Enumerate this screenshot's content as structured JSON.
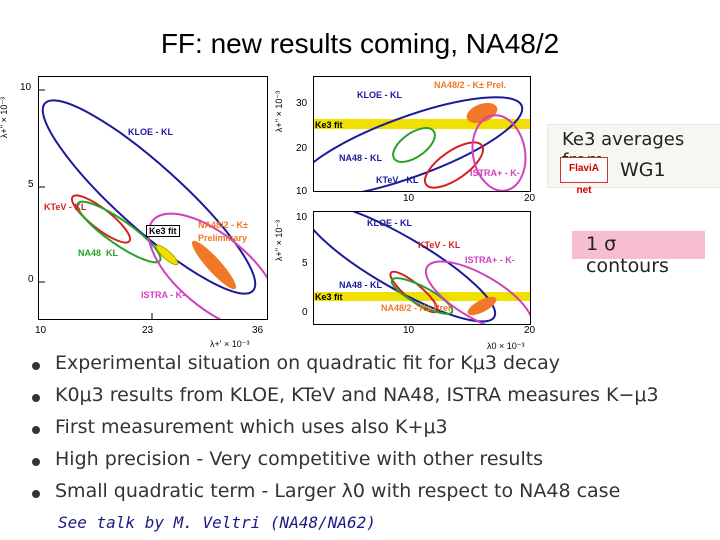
{
  "title": "FF: new results coming, NA48/2",
  "left_plot": {
    "y_ticks": [
      "10",
      "5",
      "0"
    ],
    "x_ticks": [
      "10",
      "23",
      "36"
    ],
    "y_label": "λ+'' × 10⁻³",
    "x_label": "λ+' × 10⁻³",
    "labels": {
      "kloe": "KLOE - KL",
      "ktev": "KTeV - KL",
      "ke3": "Ke3 fit",
      "na48_2": "NA48/2 - K±",
      "prelim": "Preliminary",
      "na48": "NA48  KL",
      "istra": "ISTRA - K-"
    }
  },
  "top_right_plot": {
    "y_ticks": [
      "30",
      "20",
      "10"
    ],
    "x_ticks": [
      "10",
      "20"
    ],
    "y_label": "λ+'' × 10⁻³",
    "labels": {
      "na48_2": "NA48/2 - K± Prel.",
      "kloe": "KLOE - KL",
      "ke3": "Ke3 fit",
      "na48": "NA48 - KL",
      "ktev": "KTeV - KL",
      "istra": "ISTRA+ - K-"
    }
  },
  "bottom_right_plot": {
    "y_ticks": [
      "10",
      "5",
      "0"
    ],
    "x_ticks": [
      "10",
      "20"
    ],
    "y_label": "λ+'' × 10⁻³",
    "x_label": "λ0 × 10⁻³",
    "labels": {
      "kloe": "KLOE - KL",
      "ktev": "KTeV - KL",
      "istra": "ISTRA+ - K-",
      "na48": "NA48 - KL",
      "ke3": "Ke3 fit",
      "na48_2": "NA48/2 - K± Prel."
    }
  },
  "wg_box": {
    "line1": "Ke3 averages from",
    "line2": "WG1",
    "logo": "FlaviA net"
  },
  "contour_box": {
    "text": "1 σ contours"
  },
  "bullets": [
    "Experimental situation on quadratic fit for Kμ3 decay",
    "K0μ3 results from KLOE, KTeV and NA48, ISTRA measures K−μ3",
    "First measurement which uses also K+μ3",
    "High precision - Very competitive with other results",
    "Small quadratic term - Larger λ0 with respect to NA48 case"
  ],
  "footnote": "See talk by M. Veltri (NA48/NA62)",
  "colors": {
    "kloe": "#1a1a9a",
    "ktev": "#d42020",
    "na48": "#2aa02a",
    "istra": "#d040c0",
    "na48_2": "#f07828",
    "ke3": "#f0e000"
  }
}
